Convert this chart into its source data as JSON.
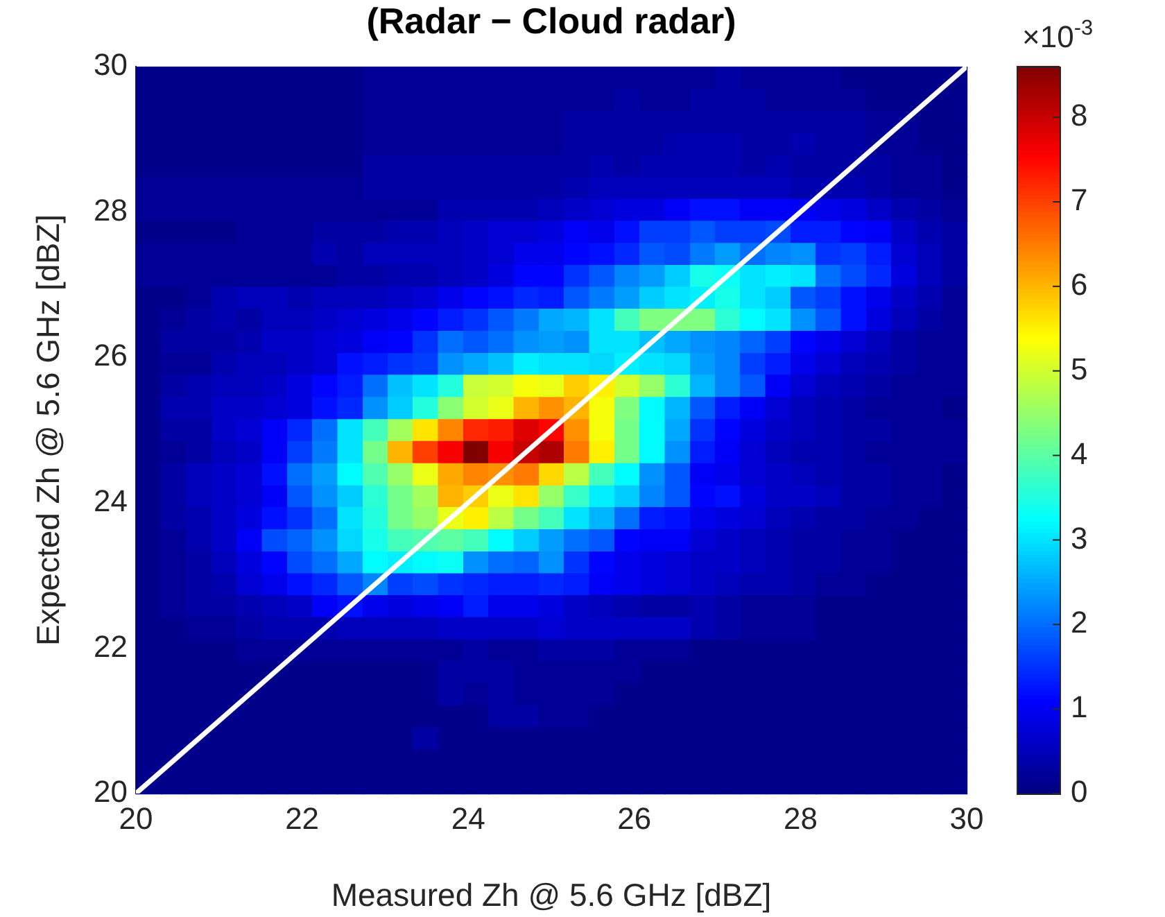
{
  "chart_data": {
    "type": "heatmap",
    "title": "(Radar − Cloud radar)",
    "xlabel": "Measured Zh @ 5.6 GHz [dBZ]",
    "ylabel": "Expected Zh @ 5.6 GHz [dBZ]",
    "clabel": "×10$^{-3}$",
    "xlim": [
      20,
      30
    ],
    "ylim": [
      20,
      30
    ],
    "xticks": [
      20,
      22,
      24,
      26,
      28,
      30
    ],
    "yticks": [
      20,
      22,
      24,
      26,
      28,
      30
    ],
    "grid": false,
    "clim": [
      0,
      8.6
    ],
    "cticks": [
      0,
      1,
      2,
      3,
      4,
      5,
      6,
      7,
      8
    ],
    "x": [
      20.15,
      20.45,
      20.76,
      21.06,
      21.36,
      21.67,
      21.97,
      22.27,
      22.58,
      22.88,
      23.18,
      23.48,
      23.79,
      24.09,
      24.39,
      24.7,
      25.0,
      25.3,
      25.61,
      25.91,
      26.21,
      26.52,
      26.82,
      27.12,
      27.42,
      27.73,
      28.03,
      28.33,
      28.64,
      28.94,
      29.24,
      29.55,
      29.85
    ],
    "y": [
      29.85,
      29.55,
      29.24,
      28.94,
      28.64,
      28.33,
      28.03,
      27.73,
      27.42,
      27.12,
      26.82,
      26.52,
      26.21,
      25.91,
      25.61,
      25.3,
      25.0,
      24.7,
      24.39,
      24.09,
      23.79,
      23.48,
      23.18,
      22.88,
      22.58,
      22.27,
      21.97,
      21.67,
      21.36,
      21.06,
      20.76,
      20.45,
      20.15
    ],
    "series": [
      {
        "type": "line",
        "color": "#ffffff",
        "x": [
          20,
          30
        ],
        "values": [
          20,
          30
        ]
      }
    ],
    "cells": [
      [
        0.1,
        0.1,
        0.1,
        0.1,
        0.1,
        0.1,
        0.1,
        0.1,
        0.1,
        0.2,
        0.2,
        0.2,
        0.2,
        0.2,
        0.2,
        0.2,
        0.2,
        0.2,
        0.2,
        0.2,
        0.2,
        0.2,
        0.2,
        0.3,
        0.2,
        0.2,
        0.2,
        0.2,
        0.1,
        0.1,
        0.1,
        0.1,
        0.1
      ],
      [
        0.1,
        0.1,
        0.1,
        0.1,
        0.1,
        0.1,
        0.1,
        0.1,
        0.1,
        0.2,
        0.2,
        0.2,
        0.2,
        0.2,
        0.2,
        0.2,
        0.2,
        0.2,
        0.2,
        0.3,
        0.2,
        0.2,
        0.3,
        0.3,
        0.3,
        0.2,
        0.2,
        0.2,
        0.2,
        0.1,
        0.1,
        0.1,
        0.1
      ],
      [
        0.1,
        0.1,
        0.1,
        0.1,
        0.1,
        0.1,
        0.1,
        0.1,
        0.1,
        0.2,
        0.2,
        0.2,
        0.2,
        0.2,
        0.2,
        0.2,
        0.2,
        0.3,
        0.3,
        0.3,
        0.3,
        0.3,
        0.3,
        0.3,
        0.3,
        0.3,
        0.3,
        0.3,
        0.3,
        0.2,
        0.2,
        0.1,
        0.1
      ],
      [
        0.1,
        0.1,
        0.1,
        0.1,
        0.1,
        0.1,
        0.1,
        0.1,
        0.1,
        0.2,
        0.2,
        0.2,
        0.2,
        0.2,
        0.2,
        0.2,
        0.2,
        0.3,
        0.3,
        0.3,
        0.3,
        0.4,
        0.4,
        0.4,
        0.3,
        0.3,
        0.4,
        0.3,
        0.3,
        0.2,
        0.2,
        0.1,
        0.1
      ],
      [
        0.1,
        0.1,
        0.1,
        0.1,
        0.1,
        0.1,
        0.1,
        0.1,
        0.1,
        0.3,
        0.3,
        0.3,
        0.3,
        0.3,
        0.3,
        0.3,
        0.3,
        0.3,
        0.4,
        0.3,
        0.4,
        0.4,
        0.4,
        0.4,
        0.3,
        0.4,
        0.3,
        0.3,
        0.3,
        0.3,
        0.2,
        0.2,
        0.1
      ],
      [
        0.2,
        0.2,
        0.2,
        0.2,
        0.2,
        0.2,
        0.2,
        0.2,
        0.2,
        0.3,
        0.3,
        0.3,
        0.3,
        0.3,
        0.3,
        0.3,
        0.3,
        0.4,
        0.5,
        0.5,
        0.5,
        0.5,
        0.5,
        0.5,
        0.5,
        0.5,
        0.4,
        0.4,
        0.4,
        0.3,
        0.2,
        0.2,
        0.1
      ],
      [
        0.2,
        0.2,
        0.2,
        0.2,
        0.2,
        0.2,
        0.2,
        0.2,
        0.2,
        0.2,
        0.2,
        0.2,
        0.4,
        0.4,
        0.4,
        0.4,
        0.5,
        0.6,
        0.7,
        0.8,
        0.8,
        1.0,
        1.2,
        1.2,
        1.0,
        1.0,
        1.0,
        0.9,
        0.8,
        0.6,
        0.4,
        0.3,
        0.2
      ],
      [
        0.1,
        0.1,
        0.1,
        0.1,
        0.2,
        0.2,
        0.2,
        0.3,
        0.3,
        0.3,
        0.4,
        0.4,
        0.5,
        0.6,
        0.7,
        0.7,
        0.8,
        1.0,
        0.9,
        1.2,
        1.6,
        1.6,
        1.8,
        1.6,
        1.6,
        1.7,
        1.3,
        1.3,
        1.1,
        1.0,
        0.6,
        0.4,
        0.3
      ],
      [
        0.2,
        0.2,
        0.2,
        0.2,
        0.2,
        0.2,
        0.2,
        0.4,
        0.3,
        0.5,
        0.5,
        0.5,
        0.5,
        0.6,
        0.7,
        0.9,
        0.9,
        1.1,
        1.2,
        1.4,
        1.8,
        1.7,
        2.1,
        2.4,
        2.0,
        2.2,
        2.3,
        1.5,
        1.6,
        1.3,
        0.7,
        0.5,
        0.3
      ],
      [
        0.2,
        0.2,
        0.2,
        0.2,
        0.2,
        0.2,
        0.2,
        0.2,
        0.3,
        0.3,
        0.4,
        0.4,
        0.5,
        0.6,
        0.8,
        1.1,
        1.1,
        1.5,
        1.8,
        2.2,
        2.4,
        2.8,
        3.4,
        3.3,
        3.0,
        3.1,
        3.0,
        2.0,
        1.7,
        1.4,
        0.8,
        0.5,
        0.3
      ],
      [
        0.1,
        0.1,
        0.2,
        0.4,
        0.5,
        0.5,
        0.4,
        0.5,
        0.5,
        0.5,
        0.6,
        0.7,
        0.9,
        1.1,
        1.2,
        1.4,
        1.3,
        1.8,
        2.1,
        2.4,
        2.8,
        3.0,
        3.1,
        3.4,
        3.0,
        2.8,
        1.8,
        1.6,
        1.2,
        0.9,
        0.6,
        0.4,
        0.2
      ],
      [
        0.1,
        0.2,
        0.3,
        0.4,
        0.3,
        0.5,
        0.5,
        0.6,
        0.7,
        0.8,
        0.9,
        1.1,
        1.3,
        1.5,
        1.8,
        2.1,
        2.5,
        2.6,
        3.0,
        3.8,
        4.3,
        4.3,
        4.3,
        3.6,
        3.2,
        3.0,
        2.3,
        1.8,
        1.2,
        0.8,
        0.5,
        0.3,
        0.2
      ],
      [
        0.1,
        0.3,
        0.3,
        0.3,
        0.4,
        0.6,
        0.6,
        0.7,
        0.8,
        1.0,
        1.1,
        1.5,
        2.0,
        1.8,
        2.0,
        2.3,
        2.4,
        2.3,
        3.0,
        3.0,
        2.7,
        2.5,
        2.3,
        2.2,
        1.9,
        1.6,
        1.1,
        0.9,
        0.7,
        0.5,
        0.3,
        0.2,
        0.2
      ],
      [
        0.1,
        0.2,
        0.2,
        0.4,
        0.5,
        0.5,
        0.6,
        0.7,
        1.2,
        1.3,
        1.5,
        1.6,
        2.3,
        2.5,
        2.7,
        3.1,
        3.0,
        3.0,
        2.9,
        3.1,
        3.0,
        2.9,
        2.4,
        2.2,
        1.6,
        1.3,
        0.9,
        0.7,
        0.5,
        0.4,
        0.3,
        0.2,
        0.2
      ],
      [
        0.1,
        0.3,
        0.4,
        0.5,
        0.5,
        0.6,
        0.8,
        1.1,
        1.3,
        2.0,
        2.7,
        3.0,
        3.5,
        4.9,
        5.0,
        5.3,
        5.2,
        5.8,
        5.5,
        5.0,
        4.5,
        3.6,
        2.6,
        2.2,
        1.8,
        1.0,
        0.7,
        0.5,
        0.4,
        0.3,
        0.2,
        0.2,
        0.2
      ],
      [
        0.1,
        0.4,
        0.4,
        0.6,
        0.6,
        0.7,
        0.8,
        1.2,
        1.4,
        2.3,
        2.8,
        3.5,
        4.4,
        5.0,
        5.2,
        6.0,
        6.3,
        6.0,
        5.3,
        4.3,
        3.2,
        2.6,
        1.8,
        1.3,
        1.0,
        0.7,
        0.5,
        0.4,
        0.3,
        0.2,
        0.2,
        0.2,
        0.1
      ],
      [
        0.1,
        0.3,
        0.3,
        0.6,
        0.7,
        1.0,
        1.4,
        2.0,
        3.0,
        3.8,
        4.6,
        5.6,
        6.4,
        7.2,
        7.3,
        7.8,
        7.5,
        6.3,
        5.3,
        4.2,
        3.2,
        2.5,
        1.5,
        1.1,
        0.8,
        0.6,
        0.5,
        0.4,
        0.3,
        0.3,
        0.2,
        0.2,
        0.2
      ],
      [
        0.1,
        0.2,
        0.3,
        0.5,
        0.6,
        1.0,
        1.6,
        2.1,
        3.0,
        4.2,
        6.0,
        7.0,
        7.6,
        8.6,
        7.6,
        8.0,
        8.2,
        6.5,
        5.5,
        4.2,
        3.2,
        2.3,
        1.3,
        1.0,
        0.7,
        0.5,
        0.4,
        0.4,
        0.3,
        0.2,
        0.2,
        0.2,
        0.2
      ],
      [
        0.1,
        0.3,
        0.5,
        0.6,
        0.7,
        1.2,
        2.0,
        2.4,
        3.2,
        3.9,
        4.5,
        5.2,
        6.1,
        6.4,
        6.3,
        6.5,
        5.7,
        4.8,
        3.8,
        3.2,
        2.3,
        1.8,
        1.0,
        0.9,
        0.7,
        0.6,
        0.5,
        0.4,
        0.3,
        0.3,
        0.2,
        0.2,
        0.1
      ],
      [
        0.1,
        0.3,
        0.5,
        0.6,
        0.7,
        1.0,
        1.8,
        2.3,
        2.8,
        3.6,
        4.2,
        4.6,
        6.0,
        5.8,
        5.2,
        5.6,
        4.5,
        3.7,
        3.1,
        2.8,
        2.2,
        1.8,
        1.1,
        1.2,
        0.8,
        0.6,
        0.6,
        0.5,
        0.3,
        0.3,
        0.2,
        0.2,
        0.1
      ],
      [
        0.1,
        0.3,
        0.4,
        0.6,
        0.8,
        1.2,
        1.5,
        2.0,
        3.0,
        3.5,
        4.2,
        4.5,
        5.2,
        5.5,
        4.8,
        4.2,
        3.8,
        3.0,
        2.6,
        2.0,
        1.3,
        1.2,
        0.9,
        0.8,
        0.7,
        0.5,
        0.4,
        0.3,
        0.3,
        0.2,
        0.2,
        0.1,
        0.1
      ],
      [
        0.1,
        0.2,
        0.4,
        0.6,
        1.0,
        1.7,
        1.9,
        2.3,
        2.9,
        3.4,
        3.8,
        3.9,
        4.0,
        3.8,
        3.2,
        2.8,
        2.4,
        2.0,
        1.8,
        1.1,
        1.0,
        1.0,
        0.7,
        0.6,
        0.5,
        0.4,
        0.3,
        0.3,
        0.2,
        0.2,
        0.1,
        0.1,
        0.1
      ],
      [
        0.1,
        0.2,
        0.3,
        0.5,
        0.8,
        1.1,
        1.7,
        2.0,
        2.5,
        3.2,
        3.1,
        3.2,
        3.3,
        2.3,
        2.0,
        1.9,
        2.3,
        1.5,
        1.1,
        0.9,
        0.8,
        0.7,
        0.6,
        0.6,
        0.5,
        0.4,
        0.3,
        0.3,
        0.2,
        0.2,
        0.1,
        0.1,
        0.1
      ],
      [
        0.1,
        0.2,
        0.3,
        0.4,
        0.7,
        0.9,
        1.2,
        1.4,
        1.8,
        2.2,
        1.6,
        1.7,
        1.5,
        1.4,
        1.3,
        1.3,
        1.4,
        1.3,
        1.0,
        0.9,
        0.8,
        0.7,
        0.6,
        0.5,
        0.4,
        0.4,
        0.3,
        0.2,
        0.2,
        0.1,
        0.1,
        0.1,
        0.1
      ],
      [
        0.1,
        0.2,
        0.3,
        0.3,
        0.4,
        0.5,
        0.6,
        1.0,
        1.2,
        0.9,
        0.8,
        0.9,
        1.0,
        1.3,
        0.9,
        0.9,
        0.8,
        0.6,
        0.5,
        0.4,
        0.3,
        0.3,
        0.4,
        0.3,
        0.2,
        0.2,
        0.2,
        0.1,
        0.1,
        0.1,
        0.1,
        0.1,
        0.1
      ],
      [
        0.1,
        0.1,
        0.2,
        0.2,
        0.3,
        0.4,
        0.4,
        0.4,
        0.5,
        0.5,
        0.5,
        0.5,
        0.6,
        0.6,
        0.6,
        0.6,
        0.7,
        0.6,
        0.6,
        0.6,
        0.6,
        0.6,
        0.4,
        0.3,
        0.2,
        0.2,
        0.2,
        0.1,
        0.1,
        0.1,
        0.1,
        0.1,
        0.1
      ],
      [
        0.1,
        0.1,
        0.1,
        0.1,
        0.2,
        0.2,
        0.2,
        0.2,
        0.2,
        0.2,
        0.2,
        0.2,
        0.2,
        0.3,
        0.2,
        0.2,
        0.3,
        0.3,
        0.3,
        0.2,
        0.2,
        0.2,
        0.1,
        0.1,
        0.1,
        0.1,
        0.1,
        0.1,
        0.1,
        0.1,
        0.1,
        0.1,
        0.1
      ],
      [
        0.1,
        0.1,
        0.1,
        0.1,
        0.1,
        0.1,
        0.1,
        0.1,
        0.1,
        0.1,
        0.1,
        0.1,
        0.3,
        0.3,
        0.3,
        0.2,
        0.2,
        0.2,
        0.2,
        0.2,
        0.1,
        0.1,
        0.1,
        0.1,
        0.1,
        0.1,
        0.1,
        0.1,
        0.1,
        0.1,
        0.1,
        0.1,
        0.1
      ],
      [
        0.1,
        0.1,
        0.1,
        0.1,
        0.1,
        0.1,
        0.1,
        0.1,
        0.1,
        0.1,
        0.1,
        0.1,
        0.3,
        0.2,
        0.3,
        0.2,
        0.2,
        0.2,
        0.2,
        0.1,
        0.1,
        0.1,
        0.1,
        0.1,
        0.1,
        0.1,
        0.1,
        0.1,
        0.1,
        0.1,
        0.1,
        0.1,
        0.1
      ],
      [
        0.1,
        0.1,
        0.1,
        0.1,
        0.1,
        0.1,
        0.1,
        0.1,
        0.1,
        0.1,
        0.1,
        0.1,
        0.1,
        0.1,
        0.3,
        0.3,
        0.2,
        0.2,
        0.1,
        0.1,
        0.1,
        0.1,
        0.1,
        0.1,
        0.1,
        0.1,
        0.1,
        0.1,
        0.1,
        0.1,
        0.1,
        0.1,
        0.1
      ],
      [
        0.1,
        0.1,
        0.1,
        0.1,
        0.1,
        0.1,
        0.1,
        0.1,
        0.1,
        0.1,
        0.1,
        0.3,
        0.1,
        0.1,
        0.1,
        0.1,
        0.1,
        0.1,
        0.1,
        0.1,
        0.1,
        0.1,
        0.1,
        0.1,
        0.1,
        0.1,
        0.1,
        0.1,
        0.1,
        0.1,
        0.1,
        0.1,
        0.1
      ],
      [
        0.1,
        0.1,
        0.1,
        0.1,
        0.1,
        0.1,
        0.1,
        0.1,
        0.1,
        0.1,
        0.1,
        0.1,
        0.1,
        0.1,
        0.1,
        0.1,
        0.1,
        0.1,
        0.1,
        0.1,
        0.1,
        0.1,
        0.1,
        0.1,
        0.1,
        0.1,
        0.1,
        0.1,
        0.1,
        0.1,
        0.1,
        0.1,
        0.1
      ],
      [
        0.1,
        0.1,
        0.1,
        0.1,
        0.1,
        0.1,
        0.1,
        0.1,
        0.1,
        0.1,
        0.1,
        0.1,
        0.1,
        0.1,
        0.1,
        0.1,
        0.1,
        0.1,
        0.1,
        0.1,
        0.1,
        0.1,
        0.1,
        0.1,
        0.1,
        0.1,
        0.1,
        0.1,
        0.1,
        0.1,
        0.1,
        0.1,
        0.1
      ]
    ]
  }
}
